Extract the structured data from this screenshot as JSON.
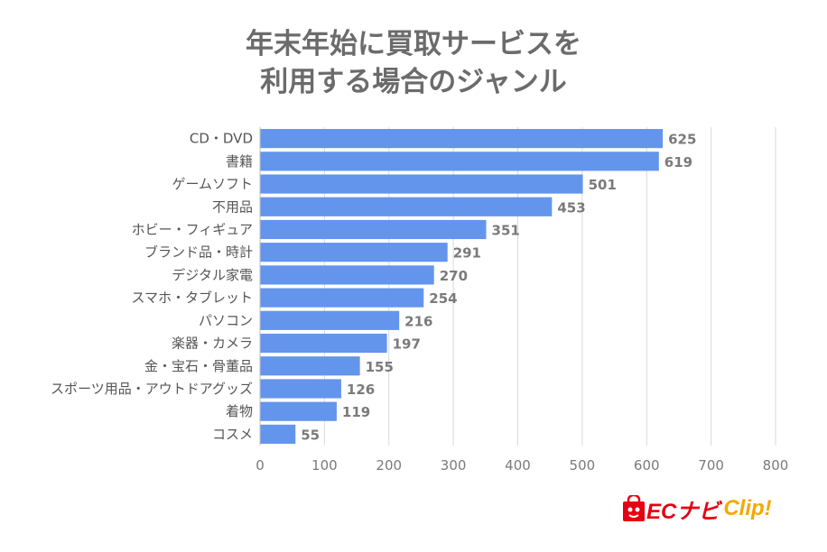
{
  "chart_data": {
    "type": "bar",
    "orientation": "horizontal",
    "title_lines": [
      "年末年始に買取サービスを",
      "利用する場合のジャンル"
    ],
    "categories": [
      "CD・DVD",
      "書籍",
      "ゲームソフト",
      "不用品",
      "ホビー・フィギュア",
      "ブランド品・時計",
      "デジタル家電",
      "スマホ・タブレット",
      "パソコン",
      "楽器・カメラ",
      "金・宝石・骨董品",
      "スポーツ用品・アウトドアグッズ",
      "着物",
      "コスメ"
    ],
    "values": [
      625,
      619,
      501,
      453,
      351,
      291,
      270,
      254,
      216,
      197,
      155,
      126,
      119,
      55
    ],
    "xlim": [
      0,
      800
    ],
    "xticks": [
      0,
      100,
      200,
      300,
      400,
      500,
      600,
      700,
      800
    ],
    "grid": true,
    "bar_color": "#6495ed"
  },
  "logo": {
    "text_ec": "ECナビ",
    "text_clip": "Clip!"
  }
}
